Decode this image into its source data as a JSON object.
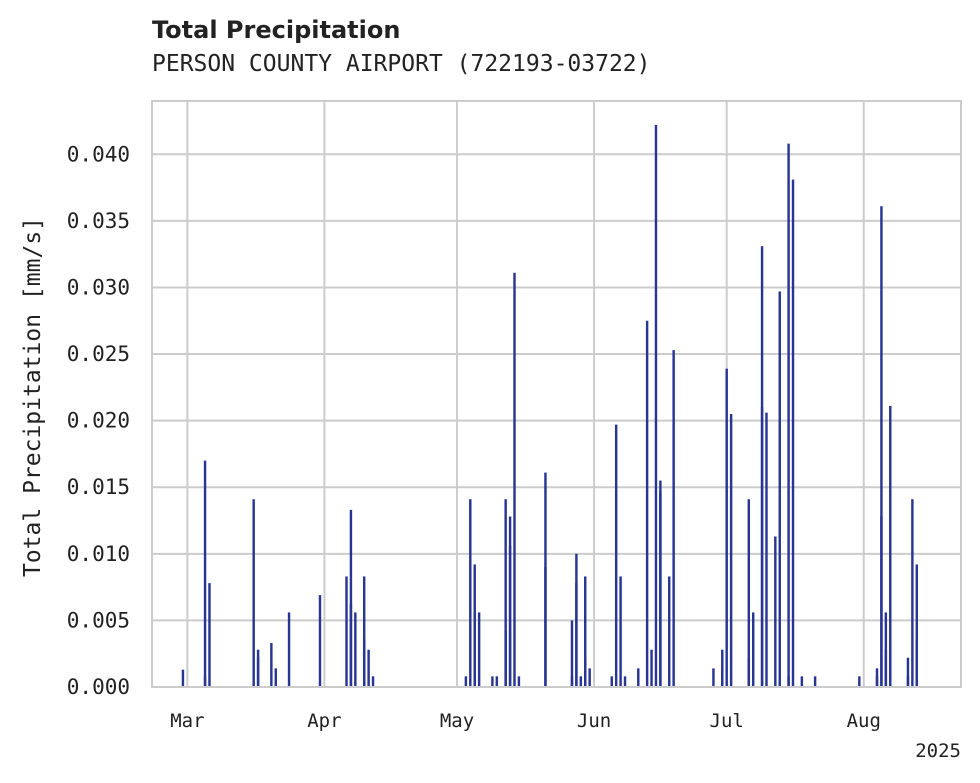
{
  "title": "Total Precipitation",
  "subtitle": "PERSON COUNTY AIRPORT (722193-03722)",
  "colors": {
    "bar": "#283593",
    "grid": "#cccccc",
    "frame": "#cccccc",
    "text": "#222222"
  },
  "chart_data": {
    "type": "bar",
    "title": "Total Precipitation",
    "subtitle": "PERSON COUNTY AIRPORT (722193-03722)",
    "ylabel": "Total Precipitation [mm/s]",
    "xlabel": "",
    "year_label": "2025",
    "ylim": [
      0,
      0.044
    ],
    "xlim": [
      "2025-02-21",
      "2025-08-23"
    ],
    "grid": true,
    "y_ticks": [
      "0.000",
      "0.005",
      "0.010",
      "0.015",
      "0.020",
      "0.025",
      "0.030",
      "0.035",
      "0.040"
    ],
    "x_ticks": [
      {
        "date": "2025-03-01",
        "label": "Mar"
      },
      {
        "date": "2025-04-01",
        "label": "Apr"
      },
      {
        "date": "2025-05-01",
        "label": "May"
      },
      {
        "date": "2025-06-01",
        "label": "Jun"
      },
      {
        "date": "2025-07-01",
        "label": "Jul"
      },
      {
        "date": "2025-08-01",
        "label": "Aug"
      }
    ],
    "series": [
      {
        "points": [
          [
            "2025-02-28",
            0.0013
          ],
          [
            "2025-03-05",
            0.0008
          ],
          [
            "2025-03-05",
            0.017
          ],
          [
            "2025-03-06",
            0.0078
          ],
          [
            "2025-03-16",
            0.0141
          ],
          [
            "2025-03-17",
            0.0028
          ],
          [
            "2025-03-17",
            0.0022
          ],
          [
            "2025-03-20",
            0.0033
          ],
          [
            "2025-03-21",
            0.0014
          ],
          [
            "2025-03-24",
            0.0056
          ],
          [
            "2025-03-31",
            0.0069
          ],
          [
            "2025-04-06",
            0.0083
          ],
          [
            "2025-04-07",
            0.0133
          ],
          [
            "2025-04-07",
            0.0062
          ],
          [
            "2025-04-08",
            0.0056
          ],
          [
            "2025-04-10",
            0.0036
          ],
          [
            "2025-04-10",
            0.0083
          ],
          [
            "2025-04-11",
            0.0028
          ],
          [
            "2025-04-12",
            0.0008
          ],
          [
            "2025-05-03",
            0.0008
          ],
          [
            "2025-05-04",
            0.0141
          ],
          [
            "2025-05-05",
            0.0092
          ],
          [
            "2025-05-05",
            0.0056
          ],
          [
            "2025-05-06",
            0.0056
          ],
          [
            "2025-05-09",
            0.0008
          ],
          [
            "2025-05-10",
            0.0008
          ],
          [
            "2025-05-12",
            0.0042
          ],
          [
            "2025-05-12",
            0.0141
          ],
          [
            "2025-05-13",
            0.0106
          ],
          [
            "2025-05-13",
            0.0128
          ],
          [
            "2025-05-14",
            0.0311
          ],
          [
            "2025-05-15",
            0.0008
          ],
          [
            "2025-05-21",
            0.009
          ],
          [
            "2025-05-21",
            0.0161
          ],
          [
            "2025-05-27",
            0.0008
          ],
          [
            "2025-05-27",
            0.005
          ],
          [
            "2025-05-28",
            0.01
          ],
          [
            "2025-05-28",
            0.0078
          ],
          [
            "2025-05-29",
            0.0008
          ],
          [
            "2025-05-30",
            0.0083
          ],
          [
            "2025-05-30",
            0.0022
          ],
          [
            "2025-05-31",
            0.0014
          ],
          [
            "2025-06-05",
            0.0008
          ],
          [
            "2025-06-06",
            0.0197
          ],
          [
            "2025-06-07",
            0.0083
          ],
          [
            "2025-06-08",
            0.0008
          ],
          [
            "2025-06-11",
            0.0014
          ],
          [
            "2025-06-13",
            0.0275
          ],
          [
            "2025-06-14",
            0.0028
          ],
          [
            "2025-06-15",
            0.0422
          ],
          [
            "2025-06-16",
            0.0155
          ],
          [
            "2025-06-16",
            0.0147
          ],
          [
            "2025-06-18",
            0.0083
          ],
          [
            "2025-06-19",
            0.0253
          ],
          [
            "2025-06-28",
            0.0014
          ],
          [
            "2025-06-30",
            0.0028
          ],
          [
            "2025-06-30",
            0.0014
          ],
          [
            "2025-07-01",
            0.0239
          ],
          [
            "2025-07-02",
            0.0205
          ],
          [
            "2025-07-06",
            0.0022
          ],
          [
            "2025-07-06",
            0.0141
          ],
          [
            "2025-07-07",
            0.0056
          ],
          [
            "2025-07-09",
            0.021
          ],
          [
            "2025-07-09",
            0.0331
          ],
          [
            "2025-07-10",
            0.0206
          ],
          [
            "2025-07-12",
            0.0113
          ],
          [
            "2025-07-13",
            0.0297
          ],
          [
            "2025-07-15",
            0.0008
          ],
          [
            "2025-07-15",
            0.0408
          ],
          [
            "2025-07-16",
            0.0381
          ],
          [
            "2025-07-18",
            0.0008
          ],
          [
            "2025-07-21",
            0.0008
          ],
          [
            "2025-07-31",
            0.0008
          ],
          [
            "2025-08-04",
            0.0008
          ],
          [
            "2025-08-04",
            0.0014
          ],
          [
            "2025-08-05",
            0.0128
          ],
          [
            "2025-08-05",
            0.0361
          ],
          [
            "2025-08-06",
            0.0056
          ],
          [
            "2025-08-06",
            0.0028
          ],
          [
            "2025-08-07",
            0.0211
          ],
          [
            "2025-08-07",
            0.0036
          ],
          [
            "2025-08-11",
            0.0008
          ],
          [
            "2025-08-11",
            0.0022
          ],
          [
            "2025-08-12",
            0.0141
          ],
          [
            "2025-08-13",
            0.0092
          ],
          [
            "2025-08-13",
            0.0036
          ]
        ]
      }
    ]
  }
}
